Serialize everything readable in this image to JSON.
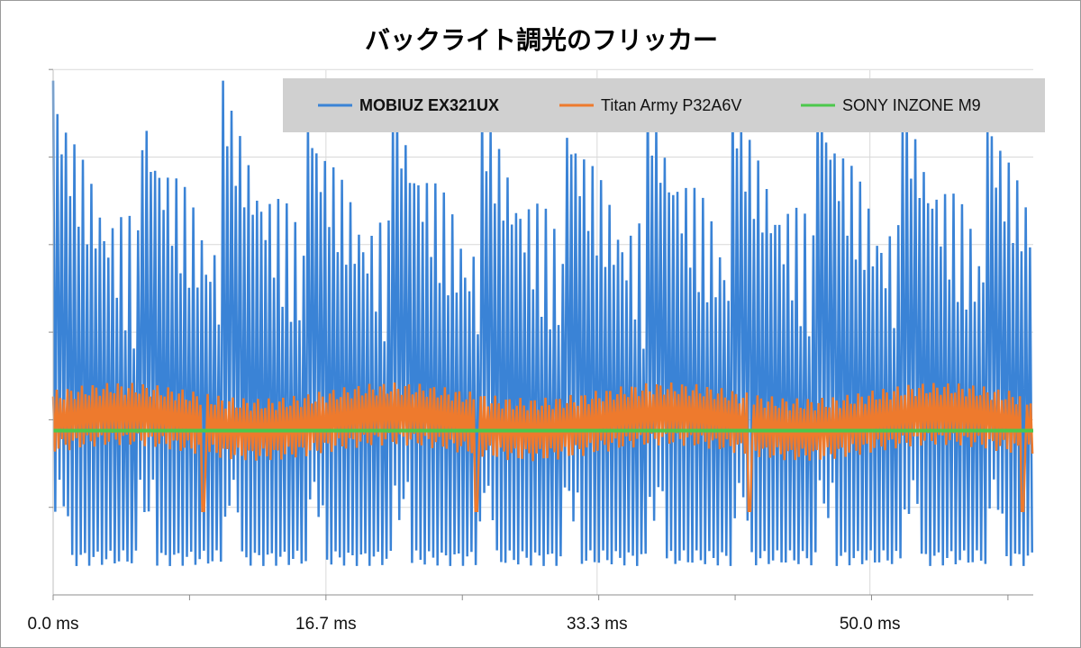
{
  "chart_data": {
    "type": "line",
    "title": "バックライト調光のフリッカー",
    "xlabel": "",
    "ylabel": "",
    "xlim": [
      0,
      60
    ],
    "x_ticks": [
      {
        "value": 0.0,
        "label": "0.0 ms"
      },
      {
        "value": 16.7,
        "label": "16.7 ms"
      },
      {
        "value": 33.3,
        "label": "33.3 ms"
      },
      {
        "value": 50.0,
        "label": "50.0 ms"
      }
    ],
    "grid": true,
    "legend_position": "top-right",
    "series": [
      {
        "name": "MOBIUZ EX321UX",
        "color": "#3a83d6",
        "bold_label": true,
        "pwm_cycle_ms": 5.2,
        "pwm_period_ms": 0.26,
        "peak_values": [
          0.98,
          0.96,
          0.98,
          0.92,
          0.96,
          0.97,
          0.95,
          0.96,
          0.96,
          0.98,
          0.95,
          0.91
        ],
        "peak_decay_to": 0.58,
        "trough_value": 0.07,
        "trough_step_value": 0.18
      },
      {
        "name": "Titan Army P32A6V",
        "color": "#ee7a2d",
        "bold_label": false,
        "center": 0.33,
        "amplitude": 0.06,
        "dip_times_ms": [
          9.2,
          25.9,
          42.6,
          59.3
        ],
        "dip_value": 0.16
      },
      {
        "name": "SONY INZONE M9",
        "color": "#4cc84c",
        "bold_label": false,
        "constant": 0.313
      }
    ]
  }
}
